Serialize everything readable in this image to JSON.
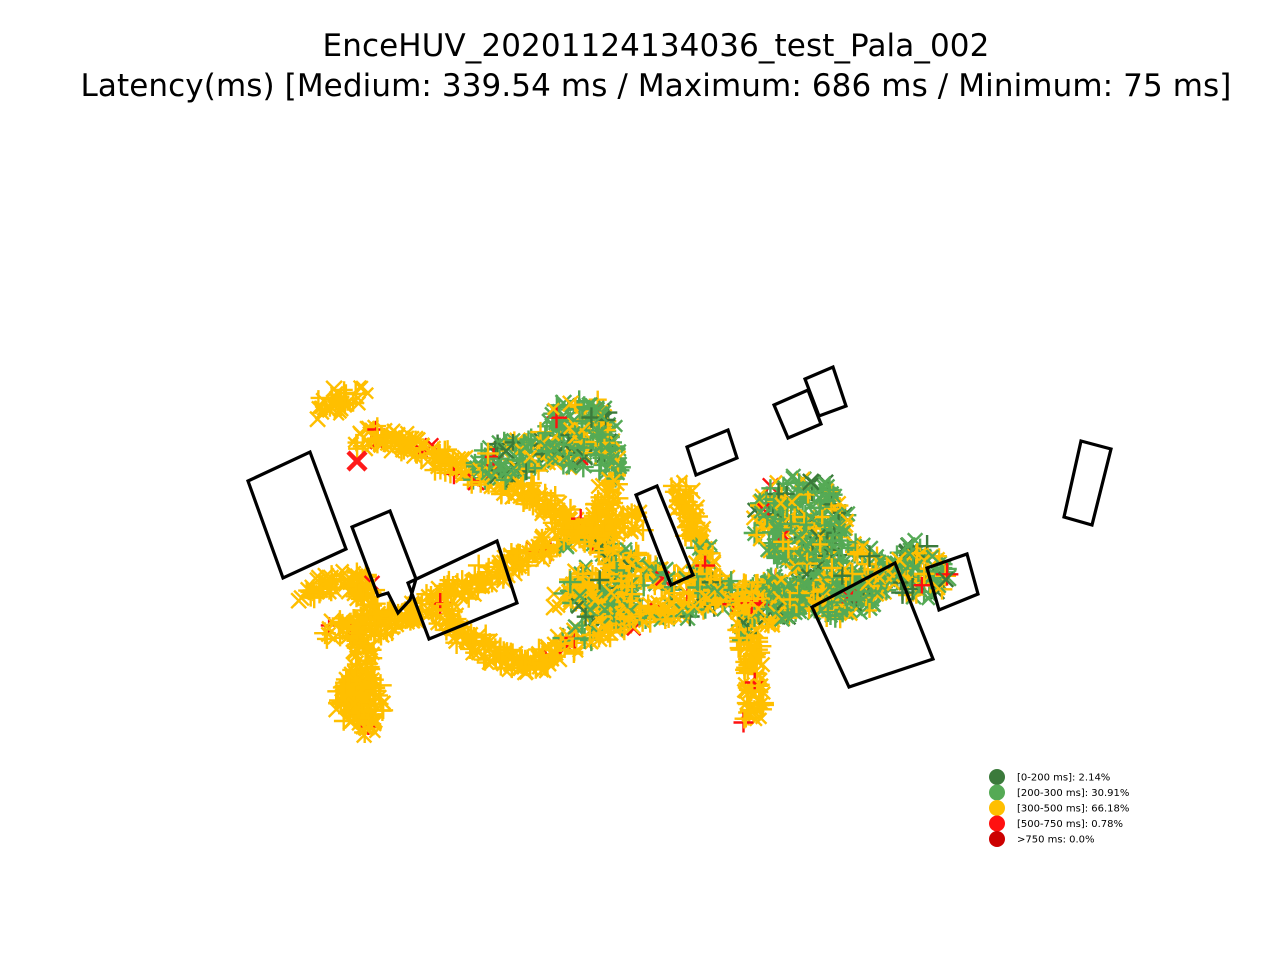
{
  "figure": {
    "title": "EnceHUV_20201124134036_test_Pala_002",
    "subtitle": "Latency(ms) [Medium: 339.54 ms / Maximum: 686 ms / Minimum: 75 ms]"
  },
  "chart_data": {
    "type": "scatter",
    "title": "EnceHUV_20201124134036_test_Pala_002",
    "subtitle": "Latency(ms) [Medium: 339.54 ms / Maximum: 686 ms / Minimum: 75 ms]",
    "axes_visible": false,
    "grid": false,
    "legend_position": "lower-right",
    "statistics": {
      "medium_ms": 339.54,
      "maximum_ms": 686,
      "minimum_ms": 75
    },
    "start_marker": {
      "symbol": "X",
      "color": "#ff1a1a"
    },
    "legend": [
      {
        "label": "[0-200 ms]: 2.14%",
        "color": "#3b7a3b",
        "share_percent": 2.14
      },
      {
        "label": "[200-300 ms]: 30.91%",
        "color": "#55aa55",
        "share_percent": 30.91
      },
      {
        "label": "[300-500 ms]: 66.18%",
        "color": "#ffbf00",
        "share_percent": 66.18
      },
      {
        "label": "[500-750 ms]: 0.78%",
        "color": "#ff1010",
        "share_percent": 0.78
      },
      {
        "label": ">750 ms: 0.0%",
        "color": "#cc0000",
        "share_percent": 0.0
      }
    ]
  }
}
